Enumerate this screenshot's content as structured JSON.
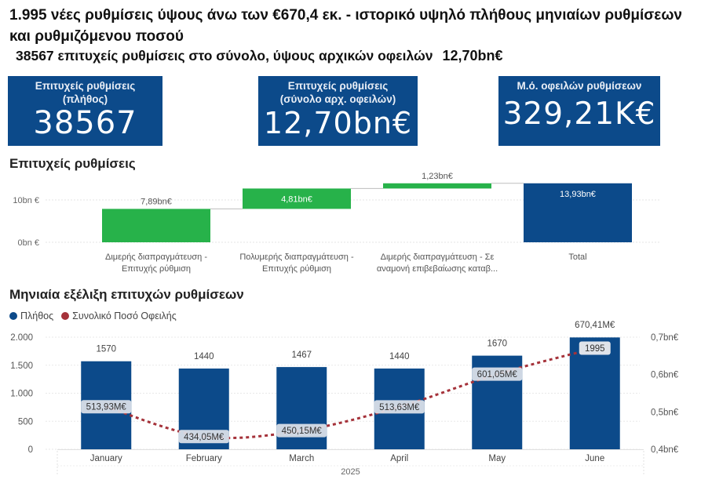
{
  "headline": {
    "line1": "1.995 νέες ρυθμίσεις ύψους άνω των €670,4 εκ. - ιστορικό υψηλό πλήθους μηνιαίων ρυθμίσεων και  ρυθμιζόμενου ποσού",
    "line2": "38567 επιτυχείς ρυθμίσεις στο σύνολο, ύψους αρχικών οφειλών",
    "line2_amount": "12,70bn€"
  },
  "kpis": [
    {
      "label": "Επιτυχείς ρυθμίσεις (πλήθος)",
      "value": "38567"
    },
    {
      "label": "Επιτυχείς ρυθμίσεις (σύνολο αρχ. οφειλών)",
      "value": "12,70bn€"
    },
    {
      "label": "Μ.ό. οφειλών ρυθμίσεων",
      "value": "329,21K€"
    }
  ],
  "colors": {
    "kpi_bg": "#0c4a8a",
    "increase": "#27b24a",
    "total": "#0c4a8a",
    "bar": "#0c4a8a",
    "line": "#a5323a"
  },
  "waterfall_title": "Επιτυχείς ρυθμίσεις",
  "monthly_title": "Μηνιαία εξέλιξη επιτυχών ρυθμίσεων",
  "chart_data": [
    {
      "type": "bar",
      "subtype": "waterfall",
      "title": "Επιτυχείς ρυθμίσεις",
      "categories": [
        [
          "Διμερής διαπραγμάτευση -",
          "Επιτυχής ρύθμιση"
        ],
        [
          "Πολυμερής διαπραγμάτευση -",
          "Επιτυχής ρύθμιση"
        ],
        [
          "Διμερής διαπραγμάτευση - Σε",
          "αναμονή επιβεβαίωσης καταβ..."
        ],
        [
          "Total"
        ]
      ],
      "values": [
        7.89,
        4.81,
        1.23,
        13.93
      ],
      "is_total": [
        false,
        false,
        false,
        true
      ],
      "data_labels": [
        "7,89bn€",
        "4,81bn€",
        "1,23bn€",
        "13,93bn€"
      ],
      "ylim": [
        0,
        15
      ],
      "yticks": [
        {
          "v": 0,
          "label": "0bn €"
        },
        {
          "v": 10,
          "label": "10bn €"
        }
      ]
    },
    {
      "type": "bar",
      "subtype": "bar+line (dual axis)",
      "title": "Μηνιαία εξέλιξη επιτυχών ρυθμίσεων",
      "legend_position": "top-left",
      "categories": [
        "January",
        "February",
        "March",
        "April",
        "May",
        "June"
      ],
      "x_group_label": "2025",
      "series": [
        {
          "name": "Πλήθος",
          "type": "bar",
          "axis": "left",
          "values": [
            1570,
            1440,
            1467,
            1440,
            1670,
            1995
          ],
          "labels": [
            "1570",
            "1440",
            "1467",
            "1440",
            "1670",
            "1995"
          ]
        },
        {
          "name": "Συνολικό Ποσό Οφειλής",
          "type": "line",
          "axis": "right",
          "values": [
            0.51393,
            0.43405,
            0.45015,
            0.51363,
            0.60105,
            0.67041
          ],
          "labels": [
            "513,93M€",
            "434,05M€",
            "450,15M€",
            "513,63M€",
            "601,05M€",
            "670,41M€"
          ]
        }
      ],
      "y_left": {
        "lim": [
          0,
          2000
        ],
        "ticks": [
          {
            "v": 0,
            "label": "0"
          },
          {
            "v": 500,
            "label": "500"
          },
          {
            "v": 1000,
            "label": "1.000"
          },
          {
            "v": 1500,
            "label": "1.500"
          },
          {
            "v": 2000,
            "label": "2.000"
          }
        ]
      },
      "y_right": {
        "lim": [
          0.4,
          0.7
        ],
        "ticks": [
          {
            "v": 0.4,
            "label": "0,4bn€"
          },
          {
            "v": 0.5,
            "label": "0,5bn€"
          },
          {
            "v": 0.6,
            "label": "0,6bn€"
          },
          {
            "v": 0.7,
            "label": "0,7bn€"
          }
        ]
      }
    }
  ]
}
